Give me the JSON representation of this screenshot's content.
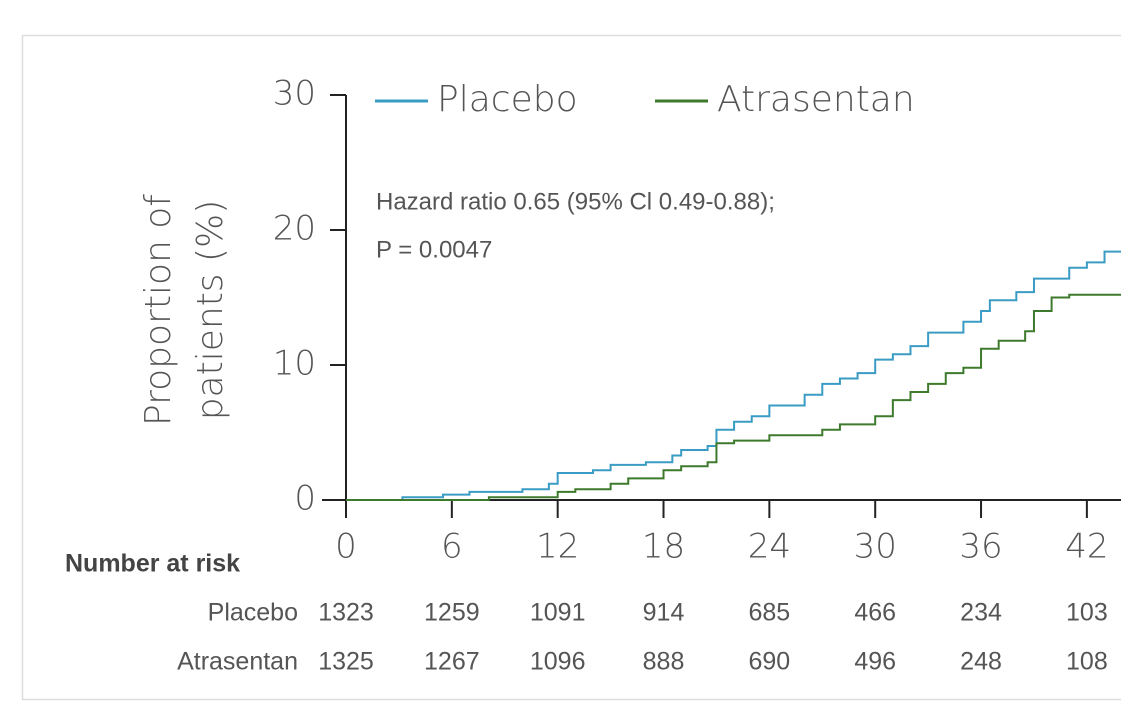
{
  "chart_data": {
    "type": "step",
    "ylabel": [
      "Proportion of",
      "patients (%)"
    ],
    "annotation": [
      "Hazard ratio 0.65 (95% Cl 0.49-0.88);",
      "P = 0.0047"
    ],
    "xlim": [
      0,
      44
    ],
    "ylim": [
      0,
      30
    ],
    "xticks": [
      0,
      6,
      12,
      18,
      24,
      30,
      36,
      42
    ],
    "yticks": [
      0,
      10,
      20,
      30
    ],
    "series": [
      {
        "name": "Placebo",
        "color": "#3a9cc4",
        "x": [
          0,
          3.2,
          5.5,
          7,
          10,
          11.5,
          12,
          14,
          15,
          17,
          18.5,
          19,
          20.5,
          21,
          22,
          23,
          24,
          26,
          27,
          28,
          29,
          30,
          31,
          32,
          33,
          35,
          36,
          36.5,
          38,
          39,
          41,
          42,
          43,
          44
        ],
        "values": [
          0,
          0.2,
          0.4,
          0.6,
          0.8,
          1.2,
          2,
          2.2,
          2.6,
          2.8,
          3.3,
          3.7,
          4,
          5.2,
          5.8,
          6.2,
          7,
          7.8,
          8.6,
          9,
          9.4,
          10.4,
          10.8,
          11.4,
          12.4,
          13.2,
          14,
          14.8,
          15.4,
          16.4,
          17.2,
          17.6,
          18.4,
          18.4
        ]
      },
      {
        "name": "Atrasentan",
        "color": "#3d7a2b",
        "x": [
          0,
          8.1,
          12,
          13,
          15,
          16,
          18,
          19,
          20.5,
          21,
          22,
          24,
          27,
          28,
          30,
          31,
          32,
          33,
          34,
          35,
          36,
          37,
          38.5,
          39,
          40,
          41,
          44
        ],
        "values": [
          0,
          0.2,
          0.6,
          0.8,
          1.2,
          1.6,
          2.2,
          2.5,
          2.8,
          4.2,
          4.4,
          4.8,
          5.2,
          5.6,
          6.2,
          7.4,
          8,
          8.6,
          9.4,
          9.8,
          11.2,
          11.8,
          12.5,
          14,
          15,
          15.2,
          15.2
        ]
      }
    ],
    "risk_table": {
      "title": "Number at risk",
      "rows": [
        {
          "name": "Placebo",
          "values": [
            "1323",
            "1259",
            "1091",
            "914",
            "685",
            "466",
            "234",
            "103"
          ]
        },
        {
          "name": "Atrasentan",
          "values": [
            "1325",
            "1267",
            "1096",
            "888",
            "690",
            "496",
            "248",
            "108"
          ]
        }
      ]
    }
  }
}
